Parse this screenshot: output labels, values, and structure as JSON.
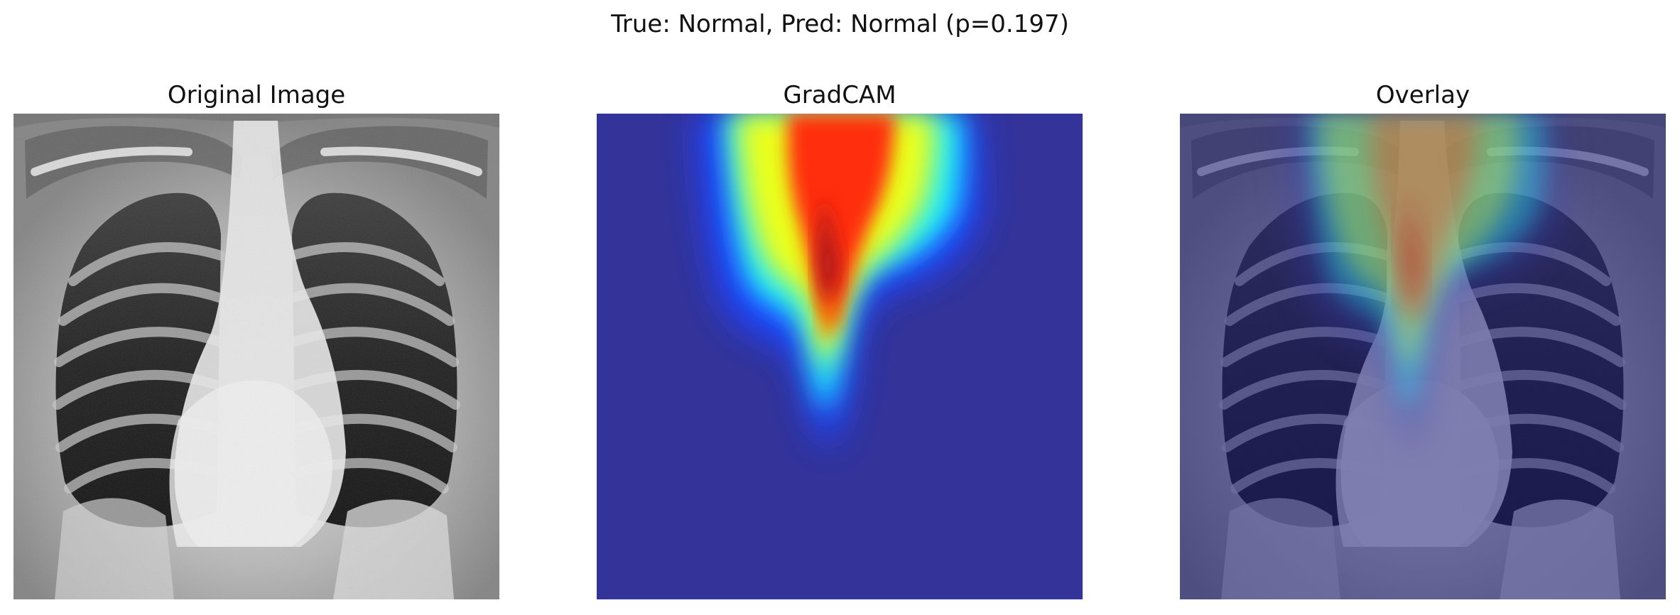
{
  "figure": {
    "suptitle": "True: Normal, Pred: Normal (p=0.197)"
  },
  "panels": [
    {
      "title": "Original Image",
      "content": "grayscale chest X-ray"
    },
    {
      "title": "GradCAM",
      "content": "jet colormap heatmap"
    },
    {
      "title": "Overlay",
      "content": "heatmap over X-ray"
    }
  ],
  "colors": {
    "gradcam_background": "#33339a",
    "heat_center": "#b21a1a",
    "heat_red": "#ff2f0b",
    "heat_yellow": "#eaff1f",
    "heat_cyan": "#1ff0ff",
    "heat_blue": "#1e43ff",
    "overlay_tint": "#3c3cb7"
  }
}
